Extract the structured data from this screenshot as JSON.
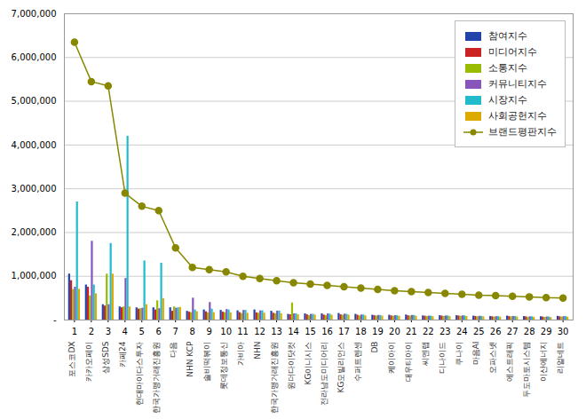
{
  "chart_data": {
    "type": "bar",
    "categories": [
      "1",
      "2",
      "3",
      "4",
      "5",
      "6",
      "7",
      "8",
      "9",
      "10",
      "11",
      "12",
      "13",
      "14",
      "15",
      "16",
      "17",
      "18",
      "19",
      "20",
      "21",
      "22",
      "23",
      "24",
      "25",
      "26",
      "27",
      "28",
      "29",
      "30"
    ],
    "annotations": [
      "포스코DX",
      "카카오페이",
      "삼성SDS",
      "카페24",
      "현대마이다스투자",
      "한국가맹거래진흥원",
      "다음",
      "NHN KCP",
      "솔비떡볶이",
      "롯데정보통신",
      "가비아",
      "NHN",
      "한국가맹거래진흥원",
      "원더다이닷컷",
      "KG이니시스",
      "전라남도미디어리",
      "KG모빌리언스",
      "수퍼트렌센",
      "DB",
      "케이아이",
      "대우티아이",
      "씨엔랩",
      "디나이드",
      "쿠나이",
      "마음AI",
      "오파스넷",
      "에스트래픽",
      "두도마토시스템",
      "이산에너지",
      "리얼네트"
    ],
    "series": [
      {
        "name": "참여지수",
        "type": "bar",
        "color": "#2244aa",
        "values": [
          1050000,
          800000,
          350000,
          300000,
          280000,
          280000,
          280000,
          200000,
          230000,
          220000,
          210000,
          230000,
          200000,
          130000,
          140000,
          140000,
          150000,
          130000,
          110000,
          110000,
          115000,
          95000,
          100000,
          100000,
          90000,
          80000,
          90000,
          80000,
          75000,
          85000
        ]
      },
      {
        "name": "미디어지수",
        "type": "bar",
        "color": "#cc2222",
        "values": [
          900000,
          750000,
          320000,
          280000,
          250000,
          230000,
          200000,
          180000,
          190000,
          180000,
          170000,
          165000,
          155000,
          120000,
          120000,
          115000,
          120000,
          110000,
          100000,
          95000,
          98000,
          88000,
          90000,
          92000,
          82000,
          75000,
          80000,
          72000,
          68000,
          75000
        ]
      },
      {
        "name": "소통지수",
        "type": "bar",
        "color": "#99bb00",
        "values": [
          700000,
          550000,
          1050000,
          300000,
          260000,
          440000,
          300000,
          170000,
          160000,
          170000,
          150000,
          155000,
          145000,
          390000,
          100000,
          100000,
          110000,
          95000,
          90000,
          88000,
          90000,
          80000,
          82000,
          85000,
          75000,
          68000,
          72000,
          65000,
          60000,
          68000
        ]
      },
      {
        "name": "커뮤니티지수",
        "type": "bar",
        "color": "#8855bb",
        "values": [
          750000,
          1800000,
          350000,
          950000,
          270000,
          260000,
          270000,
          500000,
          400000,
          240000,
          220000,
          210000,
          205000,
          140000,
          130000,
          140000,
          135000,
          115000,
          105000,
          100000,
          105000,
          90000,
          94000,
          96000,
          86000,
          78000,
          82000,
          74000,
          70000,
          78000
        ]
      },
      {
        "name": "시장지수",
        "type": "bar",
        "color": "#22bbcc",
        "values": [
          2700000,
          800000,
          1750000,
          4200000,
          1350000,
          1300000,
          280000,
          230000,
          250000,
          230000,
          220000,
          210000,
          205000,
          140000,
          130000,
          135000,
          130000,
          115000,
          105000,
          100000,
          105000,
          90000,
          94000,
          95000,
          85000,
          78000,
          82000,
          74000,
          70000,
          78000
        ]
      },
      {
        "name": "사회공헌지수",
        "type": "bar",
        "color": "#ddaa00",
        "values": [
          700000,
          600000,
          1050000,
          300000,
          350000,
          490000,
          290000,
          190000,
          170000,
          165000,
          155000,
          155000,
          145000,
          120000,
          115000,
          110000,
          112000,
          95000,
          90000,
          85000,
          88000,
          78000,
          80000,
          82000,
          74000,
          66000,
          70000,
          62000,
          58000,
          65000
        ]
      },
      {
        "name": "브랜드평판지수",
        "type": "line",
        "marker": "circle",
        "color": "#888800",
        "values": [
          6350000,
          5450000,
          5350000,
          2900000,
          2600000,
          2500000,
          1650000,
          1200000,
          1150000,
          1100000,
          1000000,
          950000,
          900000,
          850000,
          820000,
          790000,
          760000,
          730000,
          700000,
          670000,
          650000,
          630000,
          610000,
          590000,
          570000,
          560000,
          545000,
          530000,
          510000,
          500000
        ]
      }
    ],
    "ylim": [
      0,
      7000000
    ],
    "yticks": [
      {
        "value": 0,
        "label": "-"
      },
      {
        "value": 1000000,
        "label": "1,000,000"
      },
      {
        "value": 2000000,
        "label": "2,000,000"
      },
      {
        "value": 3000000,
        "label": "3,000,000"
      },
      {
        "value": 4000000,
        "label": "4,000,000"
      },
      {
        "value": 5000000,
        "label": "5,000,000"
      },
      {
        "value": 6000000,
        "label": "6,000,000"
      },
      {
        "value": 7000000,
        "label": "7,000,000"
      }
    ],
    "grid": true,
    "legend": "upper right"
  }
}
